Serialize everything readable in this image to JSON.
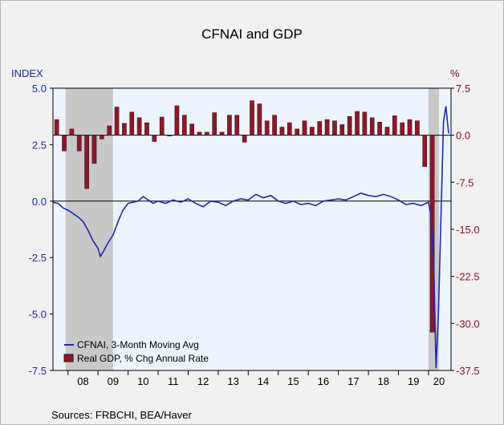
{
  "chart_data": {
    "type": "bar+line",
    "title": "CFNAI and GDP",
    "left_axis": {
      "label": "INDEX",
      "ticks": [
        "5.0",
        "2.5",
        "0.0",
        "-2.5",
        "-5.0",
        "-7.5"
      ],
      "values": [
        5.0,
        2.5,
        0.0,
        -2.5,
        -5.0,
        -7.5
      ],
      "range": [
        -7.5,
        5.0
      ]
    },
    "right_axis": {
      "label": "%",
      "ticks": [
        "7.5",
        "0.0",
        "-7.5",
        "-15.0",
        "-22.5",
        "-30.0",
        "-37.5"
      ],
      "values": [
        7.5,
        0.0,
        -7.5,
        -15.0,
        -22.5,
        -30.0,
        -37.5
      ],
      "range": [
        -37.5,
        7.5
      ]
    },
    "x_range": [
      2007.5,
      2020.75
    ],
    "x_ticks": [
      {
        "label": "08",
        "x": 2008.5
      },
      {
        "label": "09",
        "x": 2009.5
      },
      {
        "label": "10",
        "x": 2010.5
      },
      {
        "label": "11",
        "x": 2011.5
      },
      {
        "label": "12",
        "x": 2012.5
      },
      {
        "label": "13",
        "x": 2013.5
      },
      {
        "label": "14",
        "x": 2014.5
      },
      {
        "label": "15",
        "x": 2015.5
      },
      {
        "label": "16",
        "x": 2016.5
      },
      {
        "label": "17",
        "x": 2017.5
      },
      {
        "label": "18",
        "x": 2018.5
      },
      {
        "label": "19",
        "x": 2019.5
      },
      {
        "label": "20",
        "x": 2020.35
      }
    ],
    "recessions": [
      [
        2007.92,
        2009.5
      ],
      [
        2020.0,
        2020.35
      ]
    ],
    "series": [
      {
        "name": "CFNAI, 3-Month Moving Avg",
        "axis": "left",
        "color": "#1f2aa8",
        "type": "line",
        "points": [
          [
            2007.5,
            -0.05
          ],
          [
            2007.67,
            -0.1
          ],
          [
            2007.83,
            -0.3
          ],
          [
            2008.0,
            -0.4
          ],
          [
            2008.17,
            -0.55
          ],
          [
            2008.33,
            -0.7
          ],
          [
            2008.5,
            -0.9
          ],
          [
            2008.67,
            -1.3
          ],
          [
            2008.83,
            -1.75
          ],
          [
            2009.0,
            -2.1
          ],
          [
            2009.08,
            -2.45
          ],
          [
            2009.17,
            -2.25
          ],
          [
            2009.33,
            -1.85
          ],
          [
            2009.5,
            -1.5
          ],
          [
            2009.67,
            -0.9
          ],
          [
            2009.83,
            -0.4
          ],
          [
            2010.0,
            -0.1
          ],
          [
            2010.17,
            -0.05
          ],
          [
            2010.33,
            0.0
          ],
          [
            2010.5,
            0.2
          ],
          [
            2010.67,
            0.05
          ],
          [
            2010.83,
            -0.1
          ],
          [
            2011.0,
            0.0
          ],
          [
            2011.25,
            -0.1
          ],
          [
            2011.5,
            0.05
          ],
          [
            2011.75,
            -0.05
          ],
          [
            2012.0,
            0.1
          ],
          [
            2012.25,
            -0.1
          ],
          [
            2012.5,
            -0.25
          ],
          [
            2012.75,
            0.0
          ],
          [
            2013.0,
            -0.05
          ],
          [
            2013.25,
            -0.2
          ],
          [
            2013.5,
            0.0
          ],
          [
            2013.75,
            0.1
          ],
          [
            2014.0,
            0.05
          ],
          [
            2014.25,
            0.3
          ],
          [
            2014.5,
            0.15
          ],
          [
            2014.75,
            0.25
          ],
          [
            2015.0,
            0.0
          ],
          [
            2015.25,
            -0.1
          ],
          [
            2015.5,
            0.0
          ],
          [
            2015.75,
            -0.15
          ],
          [
            2016.0,
            -0.1
          ],
          [
            2016.25,
            -0.2
          ],
          [
            2016.5,
            0.0
          ],
          [
            2016.75,
            0.05
          ],
          [
            2017.0,
            0.1
          ],
          [
            2017.25,
            0.05
          ],
          [
            2017.5,
            0.2
          ],
          [
            2017.75,
            0.35
          ],
          [
            2018.0,
            0.25
          ],
          [
            2018.25,
            0.2
          ],
          [
            2018.5,
            0.3
          ],
          [
            2018.75,
            0.2
          ],
          [
            2019.0,
            0.05
          ],
          [
            2019.25,
            -0.15
          ],
          [
            2019.5,
            -0.1
          ],
          [
            2019.75,
            -0.2
          ],
          [
            2020.0,
            -0.05
          ],
          [
            2020.08,
            -0.6
          ],
          [
            2020.17,
            -2.5
          ],
          [
            2020.25,
            -7.4
          ],
          [
            2020.33,
            -5.0
          ],
          [
            2020.42,
            -0.5
          ],
          [
            2020.5,
            3.5
          ],
          [
            2020.58,
            4.2
          ],
          [
            2020.67,
            3.0
          ]
        ]
      },
      {
        "name": "Real GDP, % Chg Annual Rate",
        "axis": "right",
        "color": "#8a1a2a",
        "type": "bar",
        "points": [
          [
            2007.625,
            2.5
          ],
          [
            2007.875,
            -2.5
          ],
          [
            2008.125,
            1.0
          ],
          [
            2008.375,
            -2.5
          ],
          [
            2008.625,
            -8.5
          ],
          [
            2008.875,
            -4.5
          ],
          [
            2009.125,
            -0.6
          ],
          [
            2009.375,
            1.5
          ],
          [
            2009.625,
            4.5
          ],
          [
            2009.875,
            1.9
          ],
          [
            2010.125,
            3.7
          ],
          [
            2010.375,
            2.8
          ],
          [
            2010.625,
            2.0
          ],
          [
            2010.875,
            -1.0
          ],
          [
            2011.125,
            2.9
          ],
          [
            2011.375,
            -0.1
          ],
          [
            2011.625,
            4.7
          ],
          [
            2011.875,
            3.2
          ],
          [
            2012.125,
            1.8
          ],
          [
            2012.375,
            0.5
          ],
          [
            2012.625,
            0.5
          ],
          [
            2012.875,
            3.6
          ],
          [
            2013.125,
            0.5
          ],
          [
            2013.375,
            3.2
          ],
          [
            2013.625,
            3.2
          ],
          [
            2013.875,
            -1.1
          ],
          [
            2014.125,
            5.5
          ],
          [
            2014.375,
            5.0
          ],
          [
            2014.625,
            2.3
          ],
          [
            2014.875,
            3.2
          ],
          [
            2015.125,
            1.3
          ],
          [
            2015.375,
            2.0
          ],
          [
            2015.625,
            1.0
          ],
          [
            2015.875,
            2.3
          ],
          [
            2016.125,
            1.3
          ],
          [
            2016.375,
            2.2
          ],
          [
            2016.625,
            2.5
          ],
          [
            2016.875,
            2.3
          ],
          [
            2017.125,
            1.7
          ],
          [
            2017.375,
            3.0
          ],
          [
            2017.625,
            3.8
          ],
          [
            2017.875,
            3.7
          ],
          [
            2018.125,
            2.8
          ],
          [
            2018.375,
            2.1
          ],
          [
            2018.625,
            1.3
          ],
          [
            2018.875,
            3.1
          ],
          [
            2019.125,
            2.0
          ],
          [
            2019.375,
            2.5
          ],
          [
            2019.625,
            2.3
          ],
          [
            2019.875,
            -5.0
          ],
          [
            2020.125,
            -31.4
          ]
        ]
      }
    ],
    "legend_placement": "bottom-left",
    "grid": false
  },
  "title": "CFNAI and GDP",
  "left_unit": "INDEX",
  "right_unit": "%",
  "source": "Sources:  FRBCHI, BEA/Haver",
  "legend": {
    "line_label": "CFNAI, 3-Month Moving Avg",
    "bar_label": "Real GDP, % Chg Annual Rate"
  },
  "colors": {
    "plot_bg": "#eef4fe",
    "recession": "#c8c8c8",
    "line": "#1f2aa8",
    "bar": "#8a1a2a",
    "left_axis": "#1f2aa8",
    "right_axis": "#8a0f22"
  }
}
